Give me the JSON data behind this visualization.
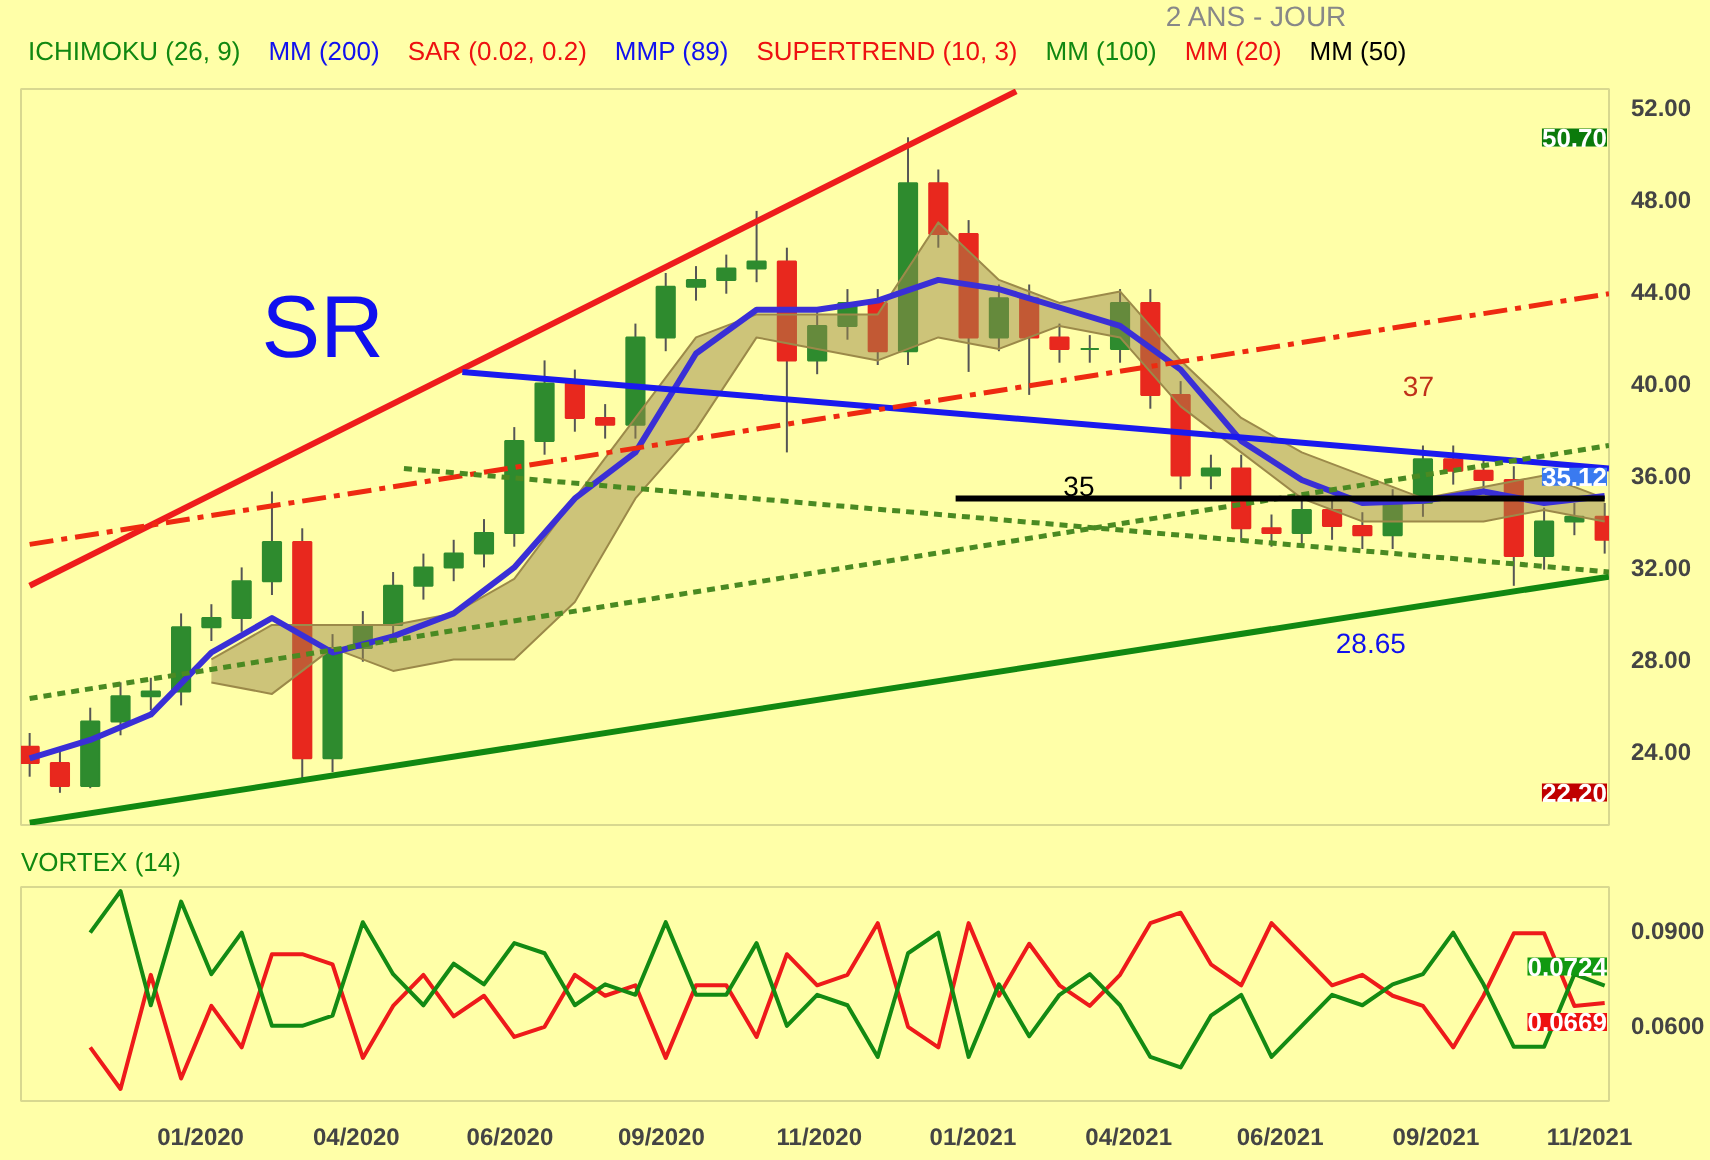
{
  "chart_data": [
    {
      "type": "candlestick",
      "tick_labels": "y",
      "grid": false,
      "annotations": [
        "2 ANS - JOUR",
        "ICHIMOKU (26, 9)",
        "MM (200)",
        "SAR (0.02, 0.2)",
        "MMP (89)",
        "SUPERTREND (10, 3)",
        "MM (100)",
        "MM (20)",
        "MM (50)",
        "SR",
        "37",
        "28.65",
        "50.70",
        "22.20",
        {
          "text": "35",
          "x": "2021-03-07",
          "y": 35
        },
        {
          "text": "35.12",
          "x": "2021-11-07",
          "y": 35.12
        }
      ],
      "x": [
        "2019-11-08",
        "2019-11-22",
        "2019-12-06",
        "2019-12-20",
        "2020-01-03",
        "2020-01-17",
        "2020-01-31",
        "2020-02-14",
        "2020-02-28",
        "2020-03-13",
        "2020-03-27",
        "2020-04-10",
        "2020-04-24",
        "2020-05-08",
        "2020-05-22",
        "2020-06-05",
        "2020-06-19",
        "2020-07-03",
        "2020-07-17",
        "2020-07-31",
        "2020-08-14",
        "2020-08-28",
        "2020-09-11",
        "2020-09-25",
        "2020-10-09",
        "2020-10-23",
        "2020-11-06",
        "2020-11-20",
        "2020-12-04",
        "2020-12-18",
        "2021-01-01",
        "2021-01-15",
        "2021-01-29",
        "2021-02-12",
        "2021-02-26",
        "2021-03-12",
        "2021-03-26",
        "2021-04-09",
        "2021-04-23",
        "2021-05-07",
        "2021-05-21",
        "2021-06-04",
        "2021-06-18",
        "2021-07-02",
        "2021-07-16",
        "2021-07-30",
        "2021-08-13",
        "2021-08-27",
        "2021-09-10",
        "2021-09-24",
        "2021-10-08",
        "2021-10-22",
        "2021-11-05"
      ],
      "ohlc": [
        [
          24.2,
          24.8,
          22.9,
          23.5
        ],
        [
          23.5,
          24.1,
          22.2,
          22.5
        ],
        [
          22.5,
          25.9,
          22.4,
          25.3
        ],
        [
          25.3,
          27.0,
          24.7,
          26.4
        ],
        [
          26.4,
          27.2,
          25.8,
          26.6
        ],
        [
          26.6,
          30.0,
          26.0,
          29.4
        ],
        [
          29.4,
          30.4,
          28.8,
          29.8
        ],
        [
          29.8,
          32.0,
          29.2,
          31.4
        ],
        [
          31.4,
          35.3,
          30.8,
          33.1
        ],
        [
          33.1,
          33.7,
          22.8,
          23.7
        ],
        [
          23.7,
          29.1,
          23.1,
          28.5
        ],
        [
          28.5,
          30.1,
          27.9,
          29.5
        ],
        [
          29.5,
          31.8,
          28.9,
          31.2
        ],
        [
          31.2,
          32.6,
          30.6,
          32.0
        ],
        [
          32.0,
          33.2,
          31.4,
          32.6
        ],
        [
          32.6,
          34.1,
          32.0,
          33.5
        ],
        [
          33.5,
          38.1,
          32.9,
          37.5
        ],
        [
          37.5,
          41.0,
          36.9,
          40.0
        ],
        [
          40.0,
          40.6,
          37.9,
          38.5
        ],
        [
          38.5,
          39.1,
          37.6,
          38.2
        ],
        [
          38.2,
          42.6,
          37.6,
          42.0
        ],
        [
          42.0,
          44.8,
          41.4,
          44.2
        ],
        [
          44.2,
          45.1,
          43.6,
          44.5
        ],
        [
          44.5,
          45.6,
          43.9,
          45.0
        ],
        [
          45.0,
          47.5,
          44.4,
          45.3
        ],
        [
          45.3,
          45.9,
          37.0,
          41.0
        ],
        [
          41.0,
          43.1,
          40.4,
          42.5
        ],
        [
          42.5,
          44.1,
          41.9,
          43.5
        ],
        [
          43.5,
          44.1,
          40.8,
          41.4
        ],
        [
          41.4,
          50.7,
          40.8,
          48.7
        ],
        [
          48.7,
          49.3,
          45.9,
          46.5
        ],
        [
          46.5,
          47.1,
          40.5,
          42.0
        ],
        [
          42.0,
          44.3,
          41.4,
          43.7
        ],
        [
          43.7,
          44.3,
          39.5,
          42.0
        ],
        [
          42.0,
          42.6,
          40.9,
          41.5
        ],
        [
          41.5,
          42.1,
          40.9,
          41.5
        ],
        [
          41.5,
          44.1,
          40.9,
          43.5
        ],
        [
          43.5,
          44.1,
          38.9,
          39.5
        ],
        [
          39.5,
          40.1,
          35.4,
          36.0
        ],
        [
          36.0,
          36.9,
          35.4,
          36.3
        ],
        [
          36.3,
          36.9,
          33.1,
          33.7
        ],
        [
          33.7,
          34.3,
          32.9,
          33.5
        ],
        [
          33.5,
          35.1,
          32.9,
          34.5
        ],
        [
          34.5,
          35.1,
          33.2,
          33.8
        ],
        [
          33.8,
          34.4,
          32.8,
          33.4
        ],
        [
          33.4,
          35.4,
          32.8,
          34.8
        ],
        [
          34.8,
          37.3,
          34.2,
          36.7
        ],
        [
          36.7,
          37.3,
          35.6,
          36.2
        ],
        [
          36.2,
          36.8,
          35.2,
          35.8
        ],
        [
          35.8,
          36.4,
          31.2,
          32.5
        ],
        [
          32.5,
          34.6,
          31.9,
          34.0
        ],
        [
          34.0,
          34.8,
          33.4,
          34.2
        ],
        [
          34.2,
          34.8,
          32.6,
          33.2
        ]
      ],
      "series": [
        {
          "type": "line",
          "color": "#9c8a4a",
          "line_style": "solid",
          "x": [
            "2020-01-31",
            "2020-02-28",
            "2020-03-27",
            "2020-04-24",
            "2020-05-22",
            "2020-06-19",
            "2020-07-17",
            "2020-08-14",
            "2020-09-11",
            "2020-10-09",
            "2020-11-06",
            "2020-12-04",
            "2021-01-01",
            "2021-01-29",
            "2021-02-26",
            "2021-03-26",
            "2021-04-23",
            "2021-05-21",
            "2021-06-18",
            "2021-07-16",
            "2021-08-13",
            "2021-09-10",
            "2021-10-08",
            "2021-11-05"
          ],
          "values": [
            27,
            26.5,
            28.5,
            27.5,
            28,
            28,
            30.5,
            35,
            38,
            42,
            41.5,
            41,
            42,
            41.5,
            42.5,
            42,
            39,
            37,
            35,
            34,
            34,
            34,
            34.5,
            34
          ]
        },
        {
          "type": "line",
          "color": "#9c8a4a",
          "line_style": "solid",
          "x": [
            "2020-01-31",
            "2020-02-28",
            "2020-03-27",
            "2020-04-24",
            "2020-05-22",
            "2020-06-19",
            "2020-07-17",
            "2020-08-14",
            "2020-09-11",
            "2020-10-09",
            "2020-11-06",
            "2020-12-04",
            "2021-01-01",
            "2021-01-29",
            "2021-02-26",
            "2021-03-26",
            "2021-04-23",
            "2021-05-21",
            "2021-06-18",
            "2021-07-16",
            "2021-08-13",
            "2021-09-10",
            "2021-10-08",
            "2021-11-05"
          ],
          "values": [
            28,
            29.5,
            29.5,
            29.5,
            30,
            31.5,
            35,
            38.5,
            42,
            43,
            43,
            43,
            47,
            44.5,
            43.5,
            44,
            41,
            38.5,
            37,
            36,
            35,
            35.5,
            36,
            35
          ]
        },
        {
          "type": "line",
          "color": "#3a2fd6",
          "line_style": "solid",
          "x": [
            "2019-11-08",
            "2019-12-06",
            "2020-01-03",
            "2020-01-31",
            "2020-02-28",
            "2020-03-27",
            "2020-04-24",
            "2020-05-22",
            "2020-06-19",
            "2020-07-17",
            "2020-08-14",
            "2020-09-11",
            "2020-10-09",
            "2020-11-06",
            "2020-12-04",
            "2021-01-01",
            "2021-01-29",
            "2021-02-26",
            "2021-03-26",
            "2021-04-23",
            "2021-05-21",
            "2021-06-18",
            "2021-07-16",
            "2021-08-13",
            "2021-09-10",
            "2021-10-08",
            "2021-11-05"
          ],
          "values": [
            23.7,
            24.5,
            25.6,
            28.3,
            29.8,
            28.3,
            29.0,
            30.0,
            32.0,
            35.0,
            37.0,
            41.3,
            43.2,
            43.2,
            43.6,
            44.5,
            44.1,
            43.3,
            42.5,
            40.6,
            37.5,
            35.8,
            34.8,
            34.9,
            35.3,
            34.8,
            35.1
          ]
        },
        {
          "type": "line",
          "color": "#ee1c1c",
          "line_style": "solid",
          "x": [
            "2019-11-08",
            "2021-02-06"
          ],
          "values": [
            31.2,
            52.7
          ]
        },
        {
          "type": "line",
          "color": "#118811",
          "line_style": "solid",
          "x": [
            "2019-11-08",
            "2021-11-07"
          ],
          "values": [
            20.9,
            31.6
          ]
        },
        {
          "type": "line",
          "color": "#1a1aee",
          "line_style": "solid",
          "x": [
            "2020-05-26",
            "2021-11-07"
          ],
          "values": [
            40.5,
            36.3
          ]
        },
        {
          "type": "line",
          "color": "#ee2a10",
          "line_style": "dashdot",
          "x": [
            "2019-11-08",
            "2021-11-07"
          ],
          "values": [
            33.0,
            43.9
          ]
        },
        {
          "type": "line",
          "color": "#4a8a22",
          "line_style": "dashed",
          "x": [
            "2020-04-29",
            "2021-11-07"
          ],
          "values": [
            36.3,
            31.8
          ]
        },
        {
          "type": "line",
          "color": "#4a8a22",
          "line_style": "dashed",
          "x": [
            "2019-11-08",
            "2021-11-07"
          ],
          "values": [
            26.3,
            37.3
          ]
        },
        {
          "type": "line",
          "color": "#000000",
          "line_style": "solid",
          "x": [
            "2021-01-09",
            "2021-11-05"
          ],
          "values": [
            35,
            35
          ]
        }
      ],
      "xlim": [
        "2019-11-04",
        "2021-11-07"
      ],
      "ylim": [
        20.8,
        52.8
      ],
      "yticks": [
        {
          "value": 24,
          "label": "24.00"
        },
        {
          "value": 28,
          "label": "28.00"
        },
        {
          "value": 32,
          "label": "32.00"
        },
        {
          "value": 36,
          "label": "36.00"
        },
        {
          "value": 40,
          "label": "40.00"
        },
        {
          "value": 44,
          "label": "44.00"
        },
        {
          "value": 48,
          "label": "48.00"
        },
        {
          "value": 52,
          "label": "52.00"
        }
      ]
    },
    {
      "type": "line",
      "title": "VORTEX (14)",
      "grid": false,
      "annotations": [
        {
          "text": "0.0724",
          "x": "2021-11-07",
          "y": 0.0724
        },
        {
          "text": "0.0669",
          "x": "2021-11-07",
          "y": 0.0669
        }
      ],
      "x": [
        "2019-12-06",
        "2019-12-20",
        "2020-01-03",
        "2020-01-17",
        "2020-01-31",
        "2020-02-14",
        "2020-02-28",
        "2020-03-13",
        "2020-03-27",
        "2020-04-10",
        "2020-04-24",
        "2020-05-08",
        "2020-05-22",
        "2020-06-05",
        "2020-06-19",
        "2020-07-03",
        "2020-07-17",
        "2020-07-31",
        "2020-08-14",
        "2020-08-28",
        "2020-09-11",
        "2020-09-25",
        "2020-10-09",
        "2020-10-23",
        "2020-11-06",
        "2020-11-20",
        "2020-12-04",
        "2020-12-18",
        "2021-01-01",
        "2021-01-15",
        "2021-01-29",
        "2021-02-12",
        "2021-02-26",
        "2021-03-12",
        "2021-03-26",
        "2021-04-09",
        "2021-04-23",
        "2021-05-07",
        "2021-05-21",
        "2021-06-04",
        "2021-06-18",
        "2021-07-02",
        "2021-07-16",
        "2021-07-30",
        "2021-08-13",
        "2021-08-27",
        "2021-09-10",
        "2021-09-24",
        "2021-10-08",
        "2021-10-22",
        "2021-11-05"
      ],
      "series": [
        {
          "color": "#ee1a1a",
          "values": [
            0.0529,
            0.0398,
            0.0758,
            0.0431,
            0.066,
            0.0529,
            0.0823,
            0.0823,
            0.0791,
            0.0496,
            0.066,
            0.0758,
            0.0627,
            0.0692,
            0.0562,
            0.0594,
            0.0758,
            0.0692,
            0.0725,
            0.0496,
            0.0725,
            0.0725,
            0.0562,
            0.0823,
            0.0725,
            0.0758,
            0.0921,
            0.0594,
            0.0529,
            0.0921,
            0.0692,
            0.0856,
            0.0725,
            0.066,
            0.0758,
            0.0921,
            0.0954,
            0.0791,
            0.0725,
            0.0921,
            0.0823,
            0.0725,
            0.0758,
            0.0692,
            0.066,
            0.0529,
            0.0692,
            0.0889,
            0.0889,
            0.066,
            0.0669
          ]
        },
        {
          "color": "#138a13",
          "values": [
            0.0891,
            0.1022,
            0.0662,
            0.0989,
            0.076,
            0.0891,
            0.0597,
            0.0597,
            0.0629,
            0.0924,
            0.076,
            0.0662,
            0.0793,
            0.0728,
            0.0858,
            0.0826,
            0.0662,
            0.0728,
            0.0695,
            0.0924,
            0.0695,
            0.0695,
            0.0858,
            0.0597,
            0.0695,
            0.0662,
            0.0499,
            0.0826,
            0.0891,
            0.0499,
            0.0728,
            0.0564,
            0.0695,
            0.076,
            0.0662,
            0.0499,
            0.0466,
            0.0629,
            0.0695,
            0.0499,
            0.0597,
            0.0695,
            0.0662,
            0.0728,
            0.076,
            0.0891,
            0.0728,
            0.0531,
            0.0531,
            0.076,
            0.0724
          ]
        }
      ],
      "xlim": [
        "2019-11-04",
        "2021-11-07"
      ],
      "ylim": [
        0.036,
        0.1035
      ],
      "xticks": [
        {
          "value": "2020-01-26",
          "label": "01/2020"
        },
        {
          "value": "2020-04-07",
          "label": "04/2020"
        },
        {
          "value": "2020-06-17",
          "label": "06/2020"
        },
        {
          "value": "2020-08-26",
          "label": "09/2020"
        },
        {
          "value": "2020-11-07",
          "label": "11/2020"
        },
        {
          "value": "2021-01-17",
          "label": "01/2021"
        },
        {
          "value": "2021-03-30",
          "label": "04/2021"
        },
        {
          "value": "2021-06-08",
          "label": "06/2021"
        },
        {
          "value": "2021-08-19",
          "label": "09/2021"
        },
        {
          "value": "2021-10-29",
          "label": "11/2021"
        }
      ],
      "yticks": [
        {
          "value": 0.06,
          "label": "0.0600"
        },
        {
          "value": 0.09,
          "label": "0.0900"
        }
      ]
    }
  ]
}
